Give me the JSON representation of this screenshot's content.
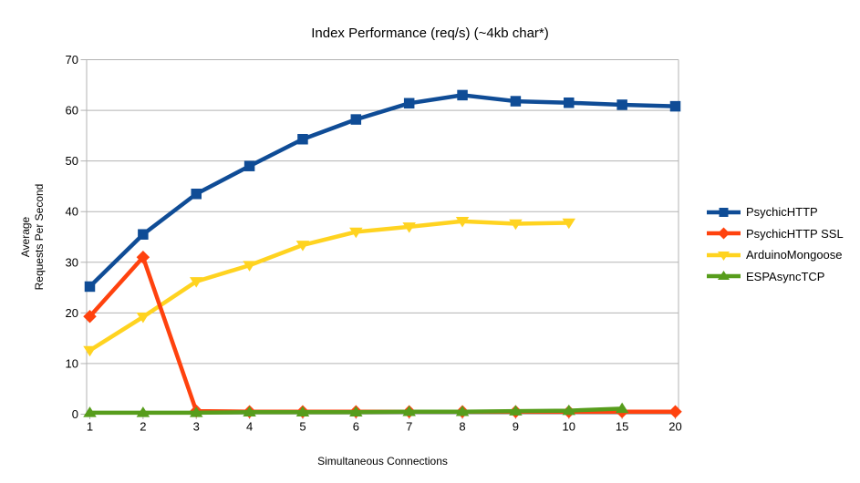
{
  "chart_data": {
    "type": "line",
    "title": "Index Performance (req/s) (~4kb char*)",
    "xlabel": "Simultaneous Connections",
    "ylabel_lines": [
      "Average",
      "Requests Per Second"
    ],
    "categories": [
      "1",
      "2",
      "3",
      "4",
      "5",
      "6",
      "7",
      "8",
      "9",
      "10",
      "15",
      "20"
    ],
    "ylim": [
      0,
      70
    ],
    "ytick_labels": [
      "0",
      "10",
      "20",
      "30",
      "40",
      "50",
      "60",
      "70"
    ],
    "grid": true,
    "legend_position": "right",
    "series": [
      {
        "name": "PsychicHTTP",
        "color": "#0F4C96",
        "marker": "square",
        "values": [
          25.2,
          35.5,
          43.5,
          49.0,
          54.3,
          58.2,
          61.4,
          63.0,
          61.8,
          61.5,
          61.1,
          60.8
        ]
      },
      {
        "name": "PsychicHTTP SSL",
        "color": "#FF420E",
        "marker": "diamond",
        "values": [
          19.3,
          31.0,
          0.6,
          0.5,
          0.5,
          0.5,
          0.5,
          0.5,
          0.5,
          0.5,
          0.5,
          0.5
        ]
      },
      {
        "name": "ArduinoMongoose",
        "color": "#FFD320",
        "marker": "triangle-down",
        "values": [
          12.6,
          19.2,
          26.2,
          29.4,
          33.4,
          36.0,
          37.0,
          38.1,
          37.6,
          37.8,
          null,
          null
        ]
      },
      {
        "name": "ESPAsyncTCP",
        "color": "#579D1C",
        "marker": "triangle-up",
        "values": [
          0.3,
          0.3,
          0.3,
          0.4,
          0.4,
          0.4,
          0.5,
          0.5,
          0.6,
          0.7,
          1.1,
          null
        ]
      }
    ],
    "draw_order": [
      2,
      1,
      0,
      3
    ],
    "grid_color": "#b3b3b3",
    "text_color": "#000000"
  }
}
